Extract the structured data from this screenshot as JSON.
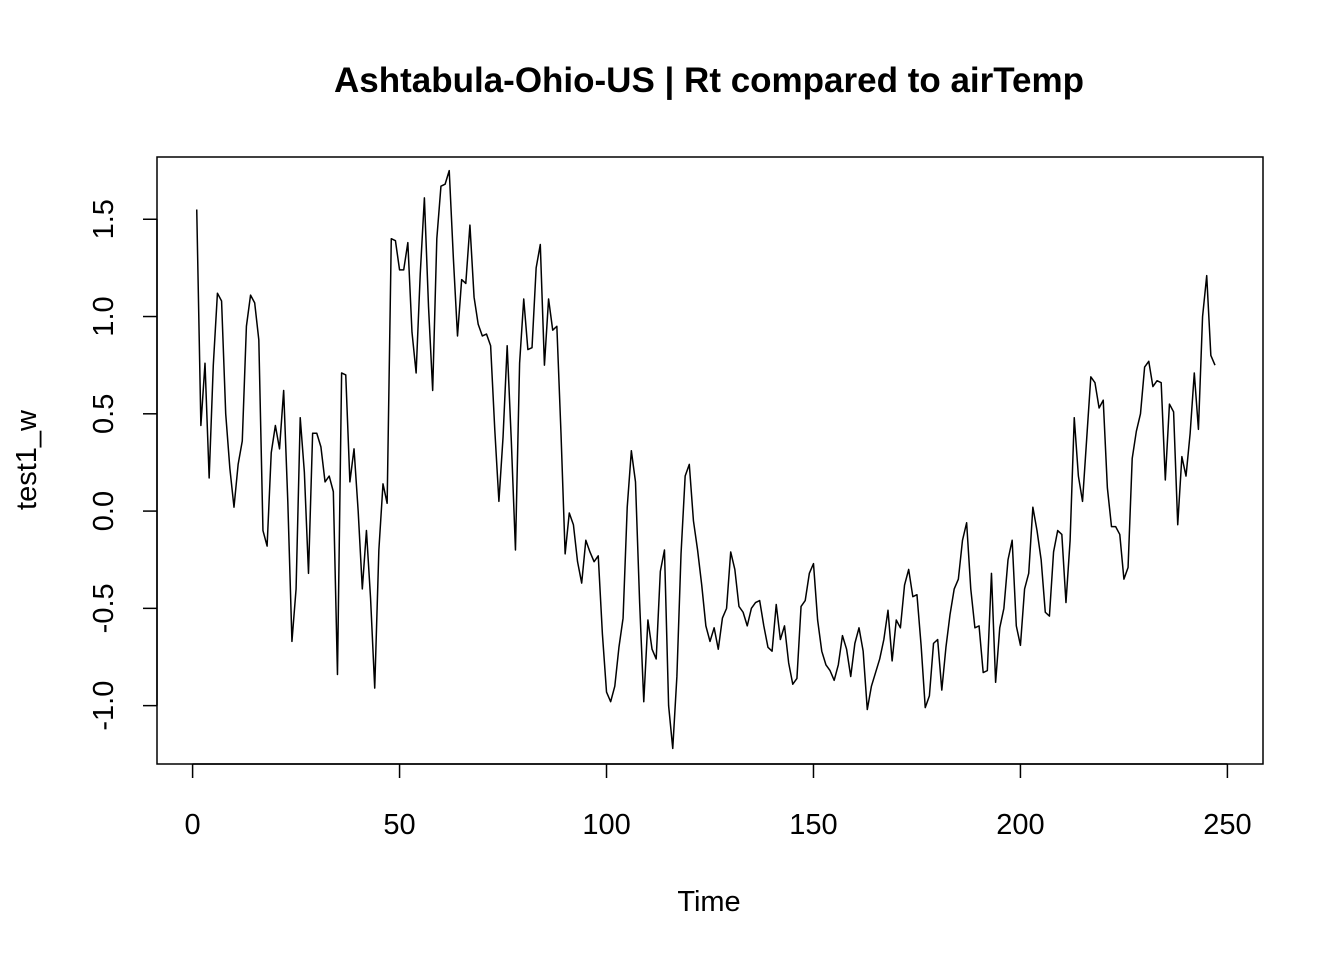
{
  "chart_data": {
    "type": "line",
    "title": "Ashtabula-Ohio-US | Rt compared to airTemp",
    "xlabel": "Time",
    "ylabel": "test1_w",
    "xlim": [
      -8.6,
      258.6
    ],
    "ylim": [
      -1.3,
      1.82
    ],
    "x_ticks": [
      0,
      50,
      100,
      150,
      200,
      250
    ],
    "x_tick_labels": [
      "0",
      "50",
      "100",
      "150",
      "200",
      "250"
    ],
    "y_ticks": [
      -1.0,
      -0.5,
      0.0,
      0.5,
      1.0,
      1.5
    ],
    "y_tick_labels": [
      "-1.0",
      "-0.5",
      "0.0",
      "0.5",
      "1.0",
      "1.5"
    ],
    "grid": false,
    "legend": "none",
    "line_color": "#000000",
    "series": [
      {
        "x_start": 1,
        "x_step": 1,
        "values": [
          1.55,
          0.44,
          0.76,
          0.17,
          0.75,
          1.12,
          1.08,
          0.5,
          0.22,
          0.02,
          0.24,
          0.36,
          0.95,
          1.11,
          1.07,
          0.88,
          -0.1,
          -0.18,
          0.3,
          0.44,
          0.32,
          0.62,
          0.05,
          -0.67,
          -0.4,
          0.48,
          0.2,
          -0.32,
          0.4,
          0.4,
          0.33,
          0.15,
          0.18,
          0.1,
          -0.84,
          0.71,
          0.7,
          0.15,
          0.32,
          0.0,
          -0.4,
          -0.1,
          -0.45,
          -0.91,
          -0.2,
          0.14,
          0.04,
          1.4,
          1.39,
          1.24,
          1.24,
          1.38,
          0.92,
          0.71,
          1.22,
          1.61,
          1.05,
          0.62,
          1.4,
          1.67,
          1.68,
          1.75,
          1.3,
          0.9,
          1.19,
          1.17,
          1.47,
          1.1,
          0.96,
          0.9,
          0.91,
          0.85,
          0.42,
          0.05,
          0.38,
          0.85,
          0.36,
          -0.2,
          0.76,
          1.09,
          0.83,
          0.84,
          1.25,
          1.37,
          0.75,
          1.09,
          0.93,
          0.95,
          0.4,
          -0.22,
          -0.01,
          -0.07,
          -0.26,
          -0.37,
          -0.15,
          -0.21,
          -0.26,
          -0.23,
          -0.63,
          -0.93,
          -0.98,
          -0.9,
          -0.7,
          -0.55,
          0.02,
          0.31,
          0.15,
          -0.47,
          -0.98,
          -0.56,
          -0.71,
          -0.76,
          -0.31,
          -0.2,
          -1.0,
          -1.22,
          -0.85,
          -0.22,
          0.18,
          0.24,
          -0.05,
          -0.2,
          -0.38,
          -0.59,
          -0.67,
          -0.6,
          -0.71,
          -0.55,
          -0.5,
          -0.21,
          -0.3,
          -0.49,
          -0.52,
          -0.59,
          -0.5,
          -0.47,
          -0.46,
          -0.59,
          -0.7,
          -0.72,
          -0.48,
          -0.66,
          -0.59,
          -0.78,
          -0.89,
          -0.86,
          -0.49,
          -0.46,
          -0.32,
          -0.27,
          -0.56,
          -0.72,
          -0.79,
          -0.82,
          -0.87,
          -0.79,
          -0.64,
          -0.71,
          -0.85,
          -0.68,
          -0.6,
          -0.72,
          -1.02,
          -0.9,
          -0.83,
          -0.76,
          -0.66,
          -0.51,
          -0.77,
          -0.56,
          -0.6,
          -0.38,
          -0.3,
          -0.44,
          -0.43,
          -0.69,
          -1.01,
          -0.95,
          -0.68,
          -0.66,
          -0.92,
          -0.7,
          -0.53,
          -0.4,
          -0.35,
          -0.15,
          -0.06,
          -0.4,
          -0.6,
          -0.59,
          -0.83,
          -0.82,
          -0.32,
          -0.88,
          -0.6,
          -0.5,
          -0.25,
          -0.15,
          -0.59,
          -0.69,
          -0.4,
          -0.32,
          0.02,
          -0.1,
          -0.25,
          -0.52,
          -0.54,
          -0.21,
          -0.1,
          -0.12,
          -0.47,
          -0.15,
          0.48,
          0.18,
          0.05,
          0.37,
          0.69,
          0.66,
          0.53,
          0.57,
          0.12,
          -0.08,
          -0.08,
          -0.12,
          -0.35,
          -0.29,
          0.27,
          0.41,
          0.5,
          0.74,
          0.77,
          0.64,
          0.67,
          0.66,
          0.16,
          0.55,
          0.51,
          -0.07,
          0.28,
          0.18,
          0.4,
          0.71,
          0.42,
          1.0,
          1.21,
          0.8,
          0.75
        ]
      }
    ]
  }
}
